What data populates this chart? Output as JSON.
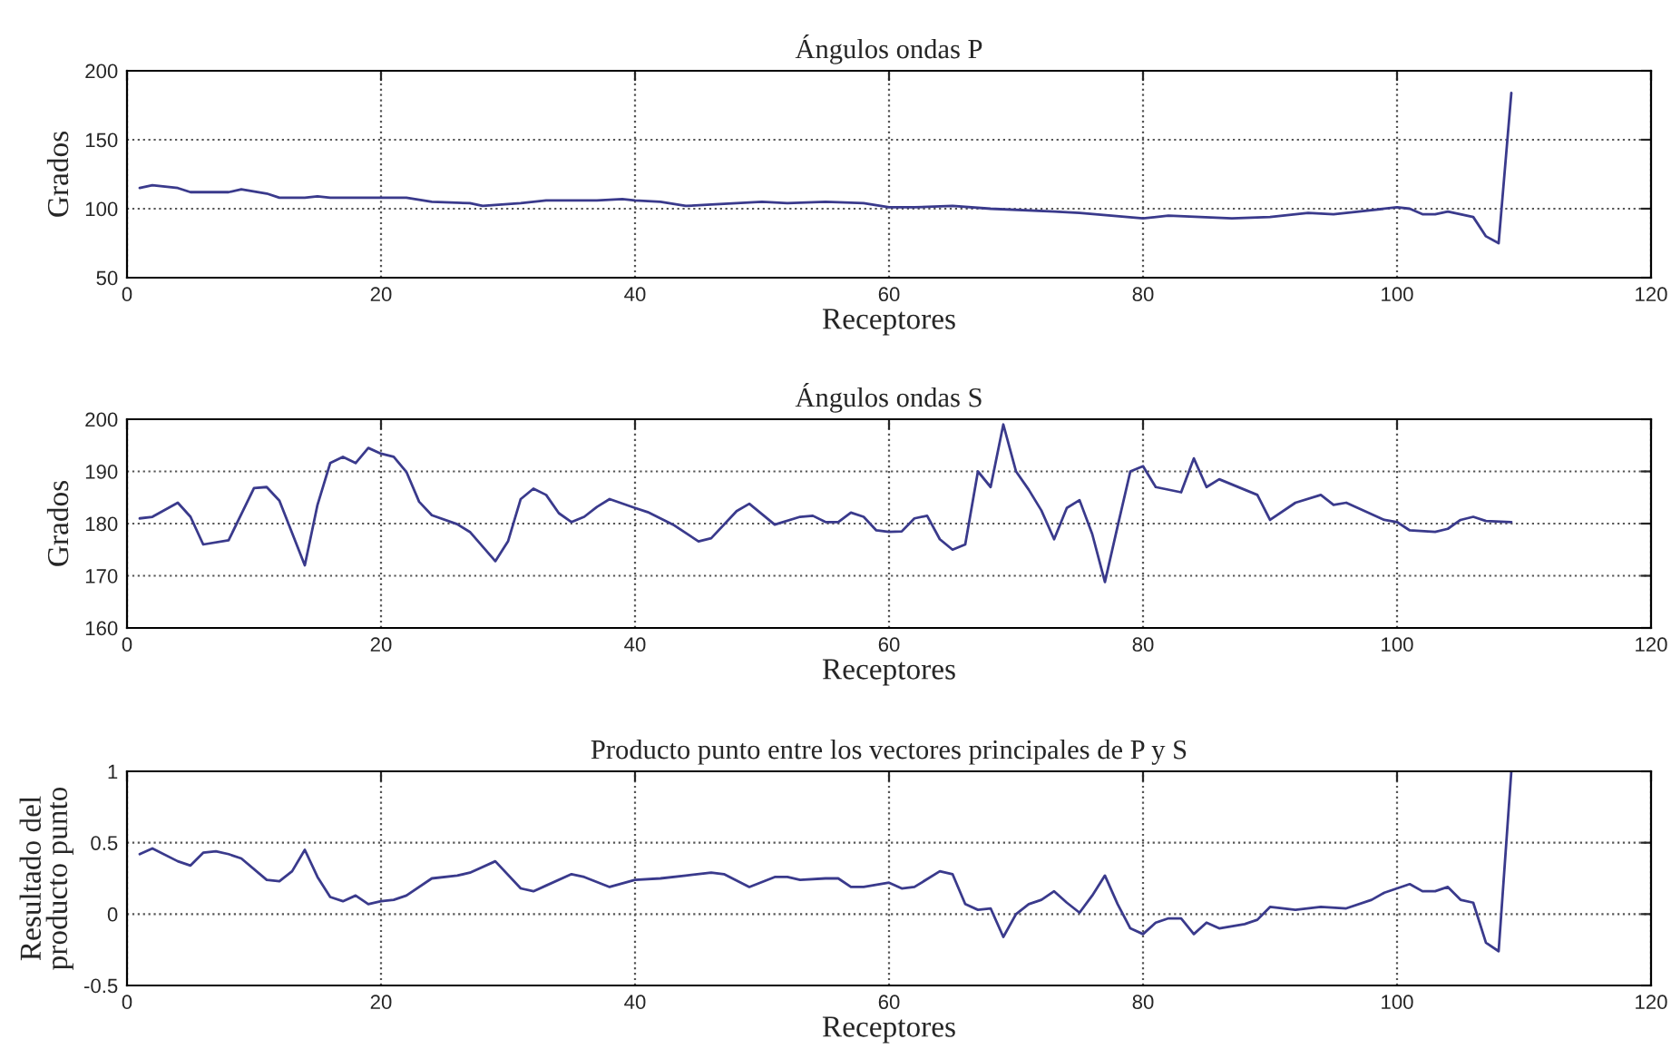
{
  "chart_data": [
    {
      "type": "line",
      "title": "Ángulos ondas P",
      "xlabel": "Receptores",
      "ylabel": "Grados",
      "xlim": [
        0,
        120
      ],
      "xticks": [
        0,
        20,
        40,
        60,
        80,
        100,
        120
      ],
      "ylim": [
        50,
        200
      ],
      "yticks": [
        50,
        100,
        150,
        200
      ],
      "grid": true,
      "legend": false,
      "line_style": "solid",
      "series": [
        {
          "color": "#3a3a8c",
          "x": [
            1,
            2,
            4,
            5,
            8,
            9,
            11,
            12,
            14,
            15,
            16,
            22,
            24,
            27,
            28,
            31,
            33,
            37,
            39,
            40,
            42,
            44,
            46,
            50,
            52,
            55,
            58,
            60,
            62,
            65,
            68,
            73,
            75,
            80,
            82,
            87,
            90,
            93,
            95,
            97,
            100,
            101,
            102,
            103,
            104,
            105,
            106,
            107,
            108,
            109
          ],
          "values": [
            115,
            117,
            115,
            112,
            112,
            114,
            111,
            108,
            108,
            109,
            108,
            108,
            105,
            104,
            102,
            104,
            106,
            106,
            107,
            106,
            105,
            102,
            103,
            105,
            104,
            105,
            104,
            101,
            101,
            102,
            100,
            98,
            97,
            93,
            95,
            93,
            94,
            97,
            96,
            98,
            101,
            100,
            96,
            96,
            98,
            96,
            94,
            80,
            75,
            184
          ]
        }
      ]
    },
    {
      "type": "line",
      "title": "Ángulos ondas S",
      "xlabel": "Receptores",
      "ylabel": "Grados",
      "xlim": [
        0,
        120
      ],
      "xticks": [
        0,
        20,
        40,
        60,
        80,
        100,
        120
      ],
      "ylim": [
        160,
        200
      ],
      "yticks": [
        160,
        170,
        180,
        190,
        200
      ],
      "grid": true,
      "legend": false,
      "line_style": "solid",
      "series": [
        {
          "color": "#3a3a8c",
          "x": [
            1,
            2,
            4,
            5,
            6,
            8,
            10,
            11,
            12,
            14,
            15,
            16,
            17,
            18,
            19,
            20,
            21,
            22,
            23,
            24,
            26,
            27,
            29,
            30,
            31,
            32,
            33,
            34,
            35,
            36,
            37,
            38,
            40,
            41,
            43,
            45,
            46,
            48,
            49,
            51,
            53,
            54,
            55,
            56,
            57,
            58,
            59,
            60,
            61,
            62,
            63,
            64,
            65,
            66,
            67,
            68,
            69,
            70,
            71,
            72,
            73,
            74,
            75,
            76,
            77,
            78,
            79,
            80,
            81,
            83,
            84,
            85,
            86,
            89,
            90,
            92,
            94,
            95,
            96,
            99,
            100,
            101,
            103,
            104,
            105,
            106,
            107,
            109
          ],
          "values": [
            181,
            181.3,
            184,
            181.3,
            176,
            176.8,
            186.8,
            187,
            184.4,
            172,
            183.6,
            191.6,
            192.8,
            191.6,
            194.5,
            193.4,
            192.8,
            189.9,
            184.2,
            181.6,
            179.9,
            178.4,
            172.8,
            176.6,
            184.7,
            186.7,
            185.5,
            182,
            180.3,
            181.3,
            183.2,
            184.7,
            183,
            182.2,
            179.8,
            176.6,
            177.2,
            182.4,
            183.8,
            179.8,
            181.3,
            181.5,
            180.3,
            180.3,
            182.1,
            181.3,
            178.7,
            178.4,
            178.5,
            181,
            181.5,
            177,
            175,
            176,
            190,
            187,
            199,
            190,
            186.5,
            182.5,
            177,
            183,
            184.5,
            178,
            168.8,
            179.5,
            190,
            191,
            187,
            186,
            192.5,
            187,
            188.5,
            185.5,
            180.7,
            184,
            185.5,
            183.6,
            184,
            180.7,
            180.3,
            178.7,
            178.4,
            179,
            180.7,
            181.3,
            180.5,
            180.3
          ]
        }
      ]
    },
    {
      "type": "line",
      "title": "Producto punto entre los vectores principales de P y S",
      "xlabel": "Receptores",
      "ylabel": "Resultado del\nproducto punto",
      "xlim": [
        0,
        120
      ],
      "xticks": [
        0,
        20,
        40,
        60,
        80,
        100,
        120
      ],
      "ylim": [
        -0.5,
        1
      ],
      "yticks": [
        {
          "value": -0.5,
          "label": "-0.5"
        },
        0,
        0.5,
        1
      ],
      "grid": true,
      "legend": false,
      "line_style": "solid",
      "series": [
        {
          "color": "#3a3a8c",
          "x": [
            1,
            2,
            4,
            5,
            6,
            7,
            8,
            9,
            11,
            12,
            13,
            14,
            15,
            16,
            17,
            18,
            19,
            20,
            21,
            22,
            24,
            26,
            27,
            29,
            31,
            32,
            33,
            35,
            36,
            38,
            40,
            42,
            44,
            46,
            47,
            49,
            51,
            52,
            53,
            55,
            56,
            57,
            58,
            60,
            61,
            62,
            64,
            65,
            66,
            67,
            68,
            69,
            70,
            71,
            72,
            73,
            74,
            75,
            76,
            77,
            78,
            79,
            80,
            81,
            82,
            83,
            84,
            85,
            86,
            88,
            89,
            90,
            92,
            94,
            96,
            98,
            99,
            101,
            102,
            103,
            104,
            105,
            106,
            107,
            108,
            109
          ],
          "values": [
            0.42,
            0.46,
            0.37,
            0.34,
            0.43,
            0.44,
            0.42,
            0.39,
            0.24,
            0.23,
            0.3,
            0.45,
            0.26,
            0.12,
            0.09,
            0.13,
            0.07,
            0.09,
            0.1,
            0.13,
            0.25,
            0.27,
            0.29,
            0.37,
            0.18,
            0.16,
            0.2,
            0.28,
            0.26,
            0.19,
            0.24,
            0.25,
            0.27,
            0.29,
            0.28,
            0.19,
            0.26,
            0.26,
            0.24,
            0.25,
            0.25,
            0.19,
            0.19,
            0.22,
            0.18,
            0.19,
            0.3,
            0.28,
            0.07,
            0.03,
            0.04,
            -0.16,
            0.0,
            0.07,
            0.1,
            0.16,
            0.08,
            0.01,
            0.13,
            0.27,
            0.07,
            -0.1,
            -0.14,
            -0.06,
            -0.03,
            -0.03,
            -0.14,
            -0.06,
            -0.1,
            -0.07,
            -0.04,
            0.05,
            0.03,
            0.05,
            0.04,
            0.1,
            0.15,
            0.21,
            0.16,
            0.16,
            0.19,
            0.1,
            0.08,
            -0.2,
            -0.26,
            1.0
          ]
        }
      ]
    }
  ]
}
